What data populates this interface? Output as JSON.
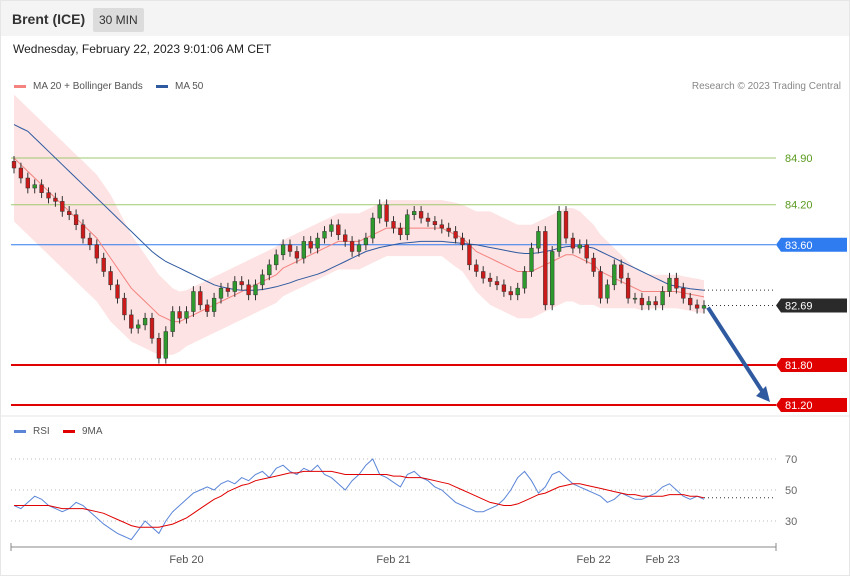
{
  "header": {
    "title": "Brent (ICE)",
    "timeframe": "30 MIN"
  },
  "timestamp": "Wednesday, February 22, 2023 9:01:06 AM CET",
  "legend_main": [
    {
      "label": "MA 20 + Bollinger Bands",
      "color": "#f4827e"
    },
    {
      "label": "MA 50",
      "color": "#2f5aa0"
    }
  ],
  "legend_rsi": [
    {
      "label": "RSI",
      "color": "#5b86d8"
    },
    {
      "label": "9MA",
      "color": "#e00000"
    }
  ],
  "credit": "Research © 2023 Trading Central",
  "levels": [
    {
      "value": 84.9,
      "label": "84.90",
      "color": "#9ec96f",
      "text_color": "#5a9a1e",
      "tag": false
    },
    {
      "value": 84.2,
      "label": "84.20",
      "color": "#9ec96f",
      "text_color": "#5a9a1e",
      "tag": false
    },
    {
      "value": 83.6,
      "label": "83.60",
      "color": "#2f7bf0",
      "text_color": "#ffffff",
      "tag": true
    },
    {
      "value": 82.69,
      "label": "82.69",
      "color": "#2a2a2a",
      "text_color": "#ffffff",
      "tag": true,
      "current": true
    },
    {
      "value": 81.8,
      "label": "81.80",
      "color": "#e00000",
      "text_color": "#ffffff",
      "tag": true
    },
    {
      "value": 81.2,
      "label": "81.20",
      "color": "#e00000",
      "text_color": "#ffffff",
      "tag": true
    }
  ],
  "x_labels": [
    {
      "label": "Feb 20",
      "index": 25
    },
    {
      "label": "Feb 21",
      "index": 55
    },
    {
      "label": "Feb 22",
      "index": 84
    },
    {
      "label": "Feb 23",
      "index": 94
    }
  ],
  "rsi_levels": [
    {
      "value": 70,
      "label": "70"
    },
    {
      "value": 50,
      "label": "50"
    },
    {
      "value": 30,
      "label": "30"
    }
  ],
  "forecast": {
    "from": 82.69,
    "to": 81.2
  },
  "chart_data": {
    "type": "candlestick",
    "ylim": [
      81.1,
      85.9
    ],
    "closes": [
      84.75,
      84.6,
      84.45,
      84.5,
      84.38,
      84.3,
      84.25,
      84.1,
      84.05,
      83.9,
      83.7,
      83.6,
      83.4,
      83.2,
      83.0,
      82.8,
      82.55,
      82.35,
      82.4,
      82.5,
      82.2,
      81.9,
      82.3,
      82.6,
      82.5,
      82.6,
      82.9,
      82.7,
      82.6,
      82.8,
      82.95,
      82.9,
      83.05,
      83.0,
      82.85,
      83.0,
      83.15,
      83.3,
      83.45,
      83.6,
      83.5,
      83.4,
      83.65,
      83.55,
      83.7,
      83.8,
      83.9,
      83.75,
      83.65,
      83.5,
      83.6,
      83.7,
      84.0,
      84.2,
      83.95,
      83.85,
      83.75,
      84.05,
      84.1,
      84.0,
      83.95,
      83.9,
      83.85,
      83.8,
      83.7,
      83.6,
      83.3,
      83.2,
      83.1,
      83.05,
      83.0,
      82.9,
      82.85,
      82.95,
      83.2,
      83.55,
      83.8,
      82.7,
      83.5,
      84.1,
      83.7,
      83.55,
      83.6,
      83.4,
      83.2,
      82.8,
      83.0,
      83.3,
      83.1,
      82.8,
      82.8,
      82.7,
      82.75,
      82.7,
      82.9,
      83.1,
      82.95,
      82.8,
      82.7,
      82.65,
      82.69
    ],
    "opens": [
      84.85,
      84.75,
      84.6,
      84.45,
      84.5,
      84.38,
      84.3,
      84.25,
      84.1,
      84.05,
      83.9,
      83.7,
      83.6,
      83.4,
      83.2,
      83.0,
      82.8,
      82.55,
      82.35,
      82.4,
      82.5,
      82.2,
      81.9,
      82.3,
      82.6,
      82.5,
      82.6,
      82.9,
      82.7,
      82.6,
      82.8,
      82.95,
      82.9,
      83.05,
      83.0,
      82.85,
      83.0,
      83.15,
      83.3,
      83.45,
      83.6,
      83.5,
      83.4,
      83.65,
      83.55,
      83.7,
      83.8,
      83.9,
      83.75,
      83.65,
      83.5,
      83.6,
      83.7,
      84.0,
      84.2,
      83.95,
      83.85,
      83.75,
      84.05,
      84.1,
      84.0,
      83.95,
      83.9,
      83.85,
      83.8,
      83.7,
      83.6,
      83.3,
      83.2,
      83.1,
      83.05,
      83.0,
      82.9,
      82.85,
      82.95,
      83.2,
      83.55,
      83.8,
      82.7,
      83.5,
      84.1,
      83.7,
      83.55,
      83.6,
      83.4,
      83.2,
      82.8,
      83.0,
      83.3,
      83.1,
      82.8,
      82.8,
      82.7,
      82.75,
      82.7,
      82.9,
      83.1,
      82.95,
      82.8,
      82.7,
      82.65
    ],
    "ma20": [
      84.9,
      84.8,
      84.7,
      84.6,
      84.5,
      84.4,
      84.3,
      84.2,
      84.1,
      84.0,
      83.9,
      83.8,
      83.7,
      83.55,
      83.4,
      83.25,
      83.1,
      82.95,
      82.85,
      82.75,
      82.65,
      82.55,
      82.5,
      82.45,
      82.45,
      82.5,
      82.55,
      82.6,
      82.65,
      82.7,
      82.75,
      82.8,
      82.85,
      82.9,
      82.95,
      83.0,
      83.05,
      83.1,
      83.15,
      83.25,
      83.3,
      83.35,
      83.4,
      83.45,
      83.5,
      83.55,
      83.6,
      83.65,
      83.65,
      83.65,
      83.65,
      83.7,
      83.75,
      83.8,
      83.85,
      83.85,
      83.85,
      83.85,
      83.85,
      83.85,
      83.85,
      83.85,
      83.85,
      83.8,
      83.75,
      83.7,
      83.6,
      83.5,
      83.45,
      83.4,
      83.35,
      83.3,
      83.25,
      83.2,
      83.2,
      83.2,
      83.25,
      83.3,
      83.35,
      83.4,
      83.45,
      83.45,
      83.4,
      83.35,
      83.3,
      83.2,
      83.15,
      83.1,
      83.05,
      83.0,
      82.95,
      82.9,
      82.9,
      82.9,
      82.9,
      82.9,
      82.9,
      82.88,
      82.86,
      82.84,
      82.82
    ],
    "ma50": [
      85.4,
      85.35,
      85.3,
      85.2,
      85.1,
      85.0,
      84.9,
      84.8,
      84.7,
      84.6,
      84.5,
      84.4,
      84.3,
      84.2,
      84.1,
      84.0,
      83.9,
      83.8,
      83.7,
      83.6,
      83.5,
      83.42,
      83.35,
      83.3,
      83.25,
      83.2,
      83.15,
      83.1,
      83.05,
      83.0,
      82.97,
      82.95,
      82.93,
      82.92,
      82.92,
      82.92,
      82.93,
      82.95,
      82.97,
      83.0,
      83.03,
      83.07,
      83.1,
      83.13,
      83.16,
      83.2,
      83.25,
      83.3,
      83.35,
      83.4,
      83.45,
      83.5,
      83.53,
      83.56,
      83.58,
      83.6,
      83.62,
      83.63,
      83.64,
      83.65,
      83.65,
      83.65,
      83.65,
      83.64,
      83.63,
      83.62,
      83.61,
      83.6,
      83.58,
      83.56,
      83.54,
      83.52,
      83.5,
      83.48,
      83.47,
      83.47,
      83.48,
      83.5,
      83.52,
      83.55,
      83.57,
      83.58,
      83.58,
      83.57,
      83.55,
      83.5,
      83.45,
      83.4,
      83.35,
      83.3,
      83.25,
      83.2,
      83.15,
      83.1,
      83.05,
      83.0,
      82.98,
      82.96,
      82.94,
      82.93,
      82.92
    ],
    "bb_width": [
      0.95,
      0.95,
      0.95,
      0.95,
      0.95,
      0.95,
      0.95,
      0.95,
      0.95,
      0.95,
      0.95,
      0.95,
      0.95,
      0.95,
      0.95,
      0.9,
      0.85,
      0.8,
      0.75,
      0.7,
      0.65,
      0.6,
      0.55,
      0.5,
      0.45,
      0.42,
      0.42,
      0.42,
      0.42,
      0.42,
      0.42,
      0.42,
      0.42,
      0.42,
      0.42,
      0.42,
      0.42,
      0.42,
      0.42,
      0.42,
      0.42,
      0.42,
      0.42,
      0.42,
      0.42,
      0.42,
      0.42,
      0.42,
      0.42,
      0.42,
      0.42,
      0.42,
      0.42,
      0.42,
      0.42,
      0.42,
      0.42,
      0.42,
      0.42,
      0.42,
      0.42,
      0.42,
      0.42,
      0.45,
      0.48,
      0.5,
      0.55,
      0.6,
      0.65,
      0.7,
      0.7,
      0.7,
      0.7,
      0.7,
      0.7,
      0.7,
      0.7,
      0.7,
      0.7,
      0.7,
      0.7,
      0.7,
      0.7,
      0.65,
      0.6,
      0.55,
      0.5,
      0.45,
      0.4,
      0.35,
      0.3,
      0.28,
      0.26,
      0.25,
      0.25,
      0.25,
      0.25,
      0.25,
      0.25,
      0.25,
      0.25
    ],
    "rsi": [
      40,
      38,
      42,
      46,
      44,
      40,
      38,
      36,
      38,
      42,
      40,
      36,
      32,
      28,
      25,
      22,
      20,
      18,
      24,
      30,
      26,
      22,
      30,
      36,
      40,
      44,
      48,
      50,
      52,
      50,
      54,
      56,
      54,
      58,
      56,
      60,
      62,
      58,
      64,
      66,
      62,
      60,
      64,
      62,
      66,
      60,
      58,
      54,
      50,
      56,
      60,
      66,
      70,
      60,
      58,
      55,
      52,
      60,
      62,
      58,
      56,
      52,
      50,
      46,
      42,
      40,
      38,
      36,
      36,
      38,
      40,
      44,
      50,
      58,
      62,
      56,
      48,
      52,
      60,
      62,
      58,
      54,
      52,
      50,
      48,
      46,
      42,
      44,
      48,
      46,
      44,
      44,
      46,
      48,
      52,
      54,
      50,
      46,
      44,
      46,
      44
    ],
    "rsi_ma": [
      40,
      40,
      40,
      40,
      40,
      40,
      39,
      38,
      38,
      38,
      38,
      37,
      36,
      35,
      33,
      31,
      29,
      27,
      26,
      26,
      26,
      26,
      27,
      28,
      30,
      32,
      35,
      38,
      41,
      44,
      46,
      49,
      51,
      53,
      54,
      56,
      57,
      58,
      59,
      60,
      61,
      61,
      62,
      62,
      62,
      62,
      62,
      61,
      60,
      60,
      60,
      60,
      60,
      60,
      60,
      59,
      59,
      58,
      58,
      58,
      57,
      56,
      55,
      54,
      52,
      50,
      48,
      46,
      44,
      42,
      41,
      40,
      40,
      41,
      43,
      45,
      47,
      48,
      50,
      52,
      53,
      54,
      54,
      53,
      52,
      51,
      50,
      49,
      48,
      47,
      47,
      46,
      46,
      46,
      46,
      47,
      47,
      47,
      46,
      46,
      45
    ],
    "rsi_ylim": [
      10,
      90
    ]
  }
}
